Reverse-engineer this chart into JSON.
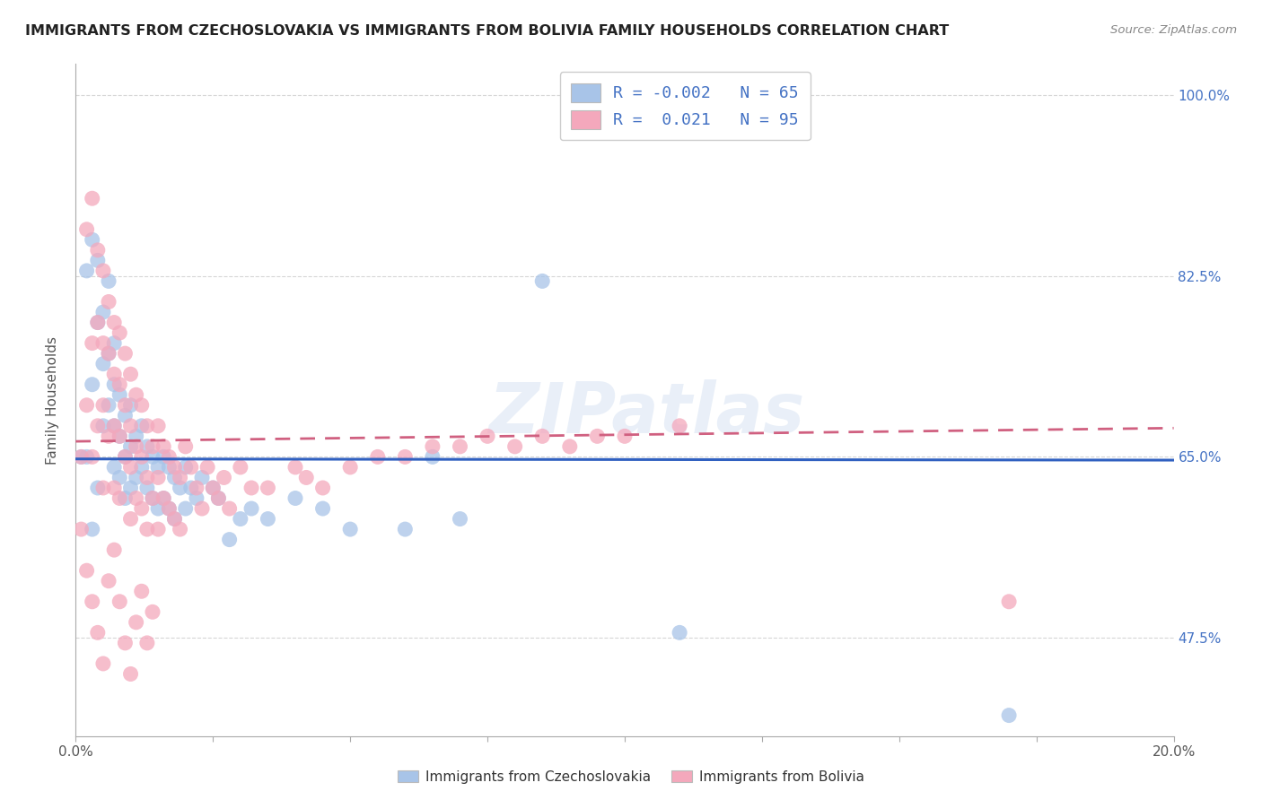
{
  "title": "IMMIGRANTS FROM CZECHOSLOVAKIA VS IMMIGRANTS FROM BOLIVIA FAMILY HOUSEHOLDS CORRELATION CHART",
  "source": "Source: ZipAtlas.com",
  "ylabel": "Family Households",
  "yticks": [
    "47.5%",
    "65.0%",
    "82.5%",
    "100.0%"
  ],
  "ytick_vals": [
    0.475,
    0.65,
    0.825,
    1.0
  ],
  "xlim": [
    0.0,
    0.2
  ],
  "ylim": [
    0.38,
    1.03
  ],
  "blue_color": "#a8c4e8",
  "pink_color": "#f4a8bc",
  "blue_line_color": "#3060c0",
  "pink_line_color": "#d06080",
  "background_color": "#ffffff",
  "watermark": "ZIPatlas",
  "legend_entries": [
    {
      "label": "R = -0.002   N = 65",
      "color": "#a8c4e8"
    },
    {
      "label": "R =  0.021   N = 95",
      "color": "#f4a8bc"
    }
  ],
  "bottom_legend": [
    {
      "label": "Immigrants from Czechoslovakia",
      "color": "#a8c4e8"
    },
    {
      "label": "Immigrants from Bolivia",
      "color": "#f4a8bc"
    }
  ],
  "blue_x": [
    0.002,
    0.003,
    0.003,
    0.004,
    0.004,
    0.005,
    0.005,
    0.005,
    0.006,
    0.006,
    0.006,
    0.007,
    0.007,
    0.007,
    0.007,
    0.008,
    0.008,
    0.008,
    0.009,
    0.009,
    0.009,
    0.01,
    0.01,
    0.01,
    0.011,
    0.011,
    0.012,
    0.012,
    0.013,
    0.013,
    0.014,
    0.014,
    0.015,
    0.015,
    0.016,
    0.016,
    0.017,
    0.017,
    0.018,
    0.018,
    0.019,
    0.02,
    0.02,
    0.021,
    0.022,
    0.023,
    0.025,
    0.026,
    0.028,
    0.03,
    0.032,
    0.035,
    0.04,
    0.045,
    0.05,
    0.06,
    0.065,
    0.07,
    0.085,
    0.11,
    0.001,
    0.002,
    0.003,
    0.004,
    0.17
  ],
  "blue_y": [
    0.83,
    0.86,
    0.72,
    0.78,
    0.84,
    0.74,
    0.79,
    0.68,
    0.75,
    0.82,
    0.7,
    0.76,
    0.72,
    0.68,
    0.64,
    0.71,
    0.67,
    0.63,
    0.69,
    0.65,
    0.61,
    0.7,
    0.66,
    0.62,
    0.67,
    0.63,
    0.68,
    0.64,
    0.66,
    0.62,
    0.65,
    0.61,
    0.64,
    0.6,
    0.65,
    0.61,
    0.64,
    0.6,
    0.63,
    0.59,
    0.62,
    0.64,
    0.6,
    0.62,
    0.61,
    0.63,
    0.62,
    0.61,
    0.57,
    0.59,
    0.6,
    0.59,
    0.61,
    0.6,
    0.58,
    0.58,
    0.65,
    0.59,
    0.82,
    0.48,
    0.65,
    0.65,
    0.58,
    0.62,
    0.4
  ],
  "pink_x": [
    0.001,
    0.002,
    0.002,
    0.003,
    0.003,
    0.003,
    0.004,
    0.004,
    0.004,
    0.005,
    0.005,
    0.005,
    0.005,
    0.006,
    0.006,
    0.006,
    0.007,
    0.007,
    0.007,
    0.007,
    0.008,
    0.008,
    0.008,
    0.008,
    0.009,
    0.009,
    0.009,
    0.01,
    0.01,
    0.01,
    0.01,
    0.011,
    0.011,
    0.011,
    0.012,
    0.012,
    0.012,
    0.013,
    0.013,
    0.013,
    0.014,
    0.014,
    0.015,
    0.015,
    0.015,
    0.016,
    0.016,
    0.017,
    0.017,
    0.018,
    0.018,
    0.019,
    0.019,
    0.02,
    0.021,
    0.022,
    0.023,
    0.024,
    0.025,
    0.026,
    0.027,
    0.028,
    0.03,
    0.032,
    0.035,
    0.04,
    0.042,
    0.045,
    0.05,
    0.055,
    0.06,
    0.065,
    0.07,
    0.075,
    0.08,
    0.085,
    0.09,
    0.095,
    0.1,
    0.11,
    0.001,
    0.002,
    0.003,
    0.004,
    0.005,
    0.006,
    0.007,
    0.008,
    0.009,
    0.01,
    0.011,
    0.012,
    0.013,
    0.014,
    0.17
  ],
  "pink_y": [
    0.65,
    0.87,
    0.7,
    0.9,
    0.76,
    0.65,
    0.85,
    0.78,
    0.68,
    0.83,
    0.76,
    0.7,
    0.62,
    0.8,
    0.75,
    0.67,
    0.78,
    0.73,
    0.68,
    0.62,
    0.77,
    0.72,
    0.67,
    0.61,
    0.75,
    0.7,
    0.65,
    0.73,
    0.68,
    0.64,
    0.59,
    0.71,
    0.66,
    0.61,
    0.7,
    0.65,
    0.6,
    0.68,
    0.63,
    0.58,
    0.66,
    0.61,
    0.68,
    0.63,
    0.58,
    0.66,
    0.61,
    0.65,
    0.6,
    0.64,
    0.59,
    0.63,
    0.58,
    0.66,
    0.64,
    0.62,
    0.6,
    0.64,
    0.62,
    0.61,
    0.63,
    0.6,
    0.64,
    0.62,
    0.62,
    0.64,
    0.63,
    0.62,
    0.64,
    0.65,
    0.65,
    0.66,
    0.66,
    0.67,
    0.66,
    0.67,
    0.66,
    0.67,
    0.67,
    0.68,
    0.58,
    0.54,
    0.51,
    0.48,
    0.45,
    0.53,
    0.56,
    0.51,
    0.47,
    0.44,
    0.49,
    0.52,
    0.47,
    0.5,
    0.51
  ]
}
